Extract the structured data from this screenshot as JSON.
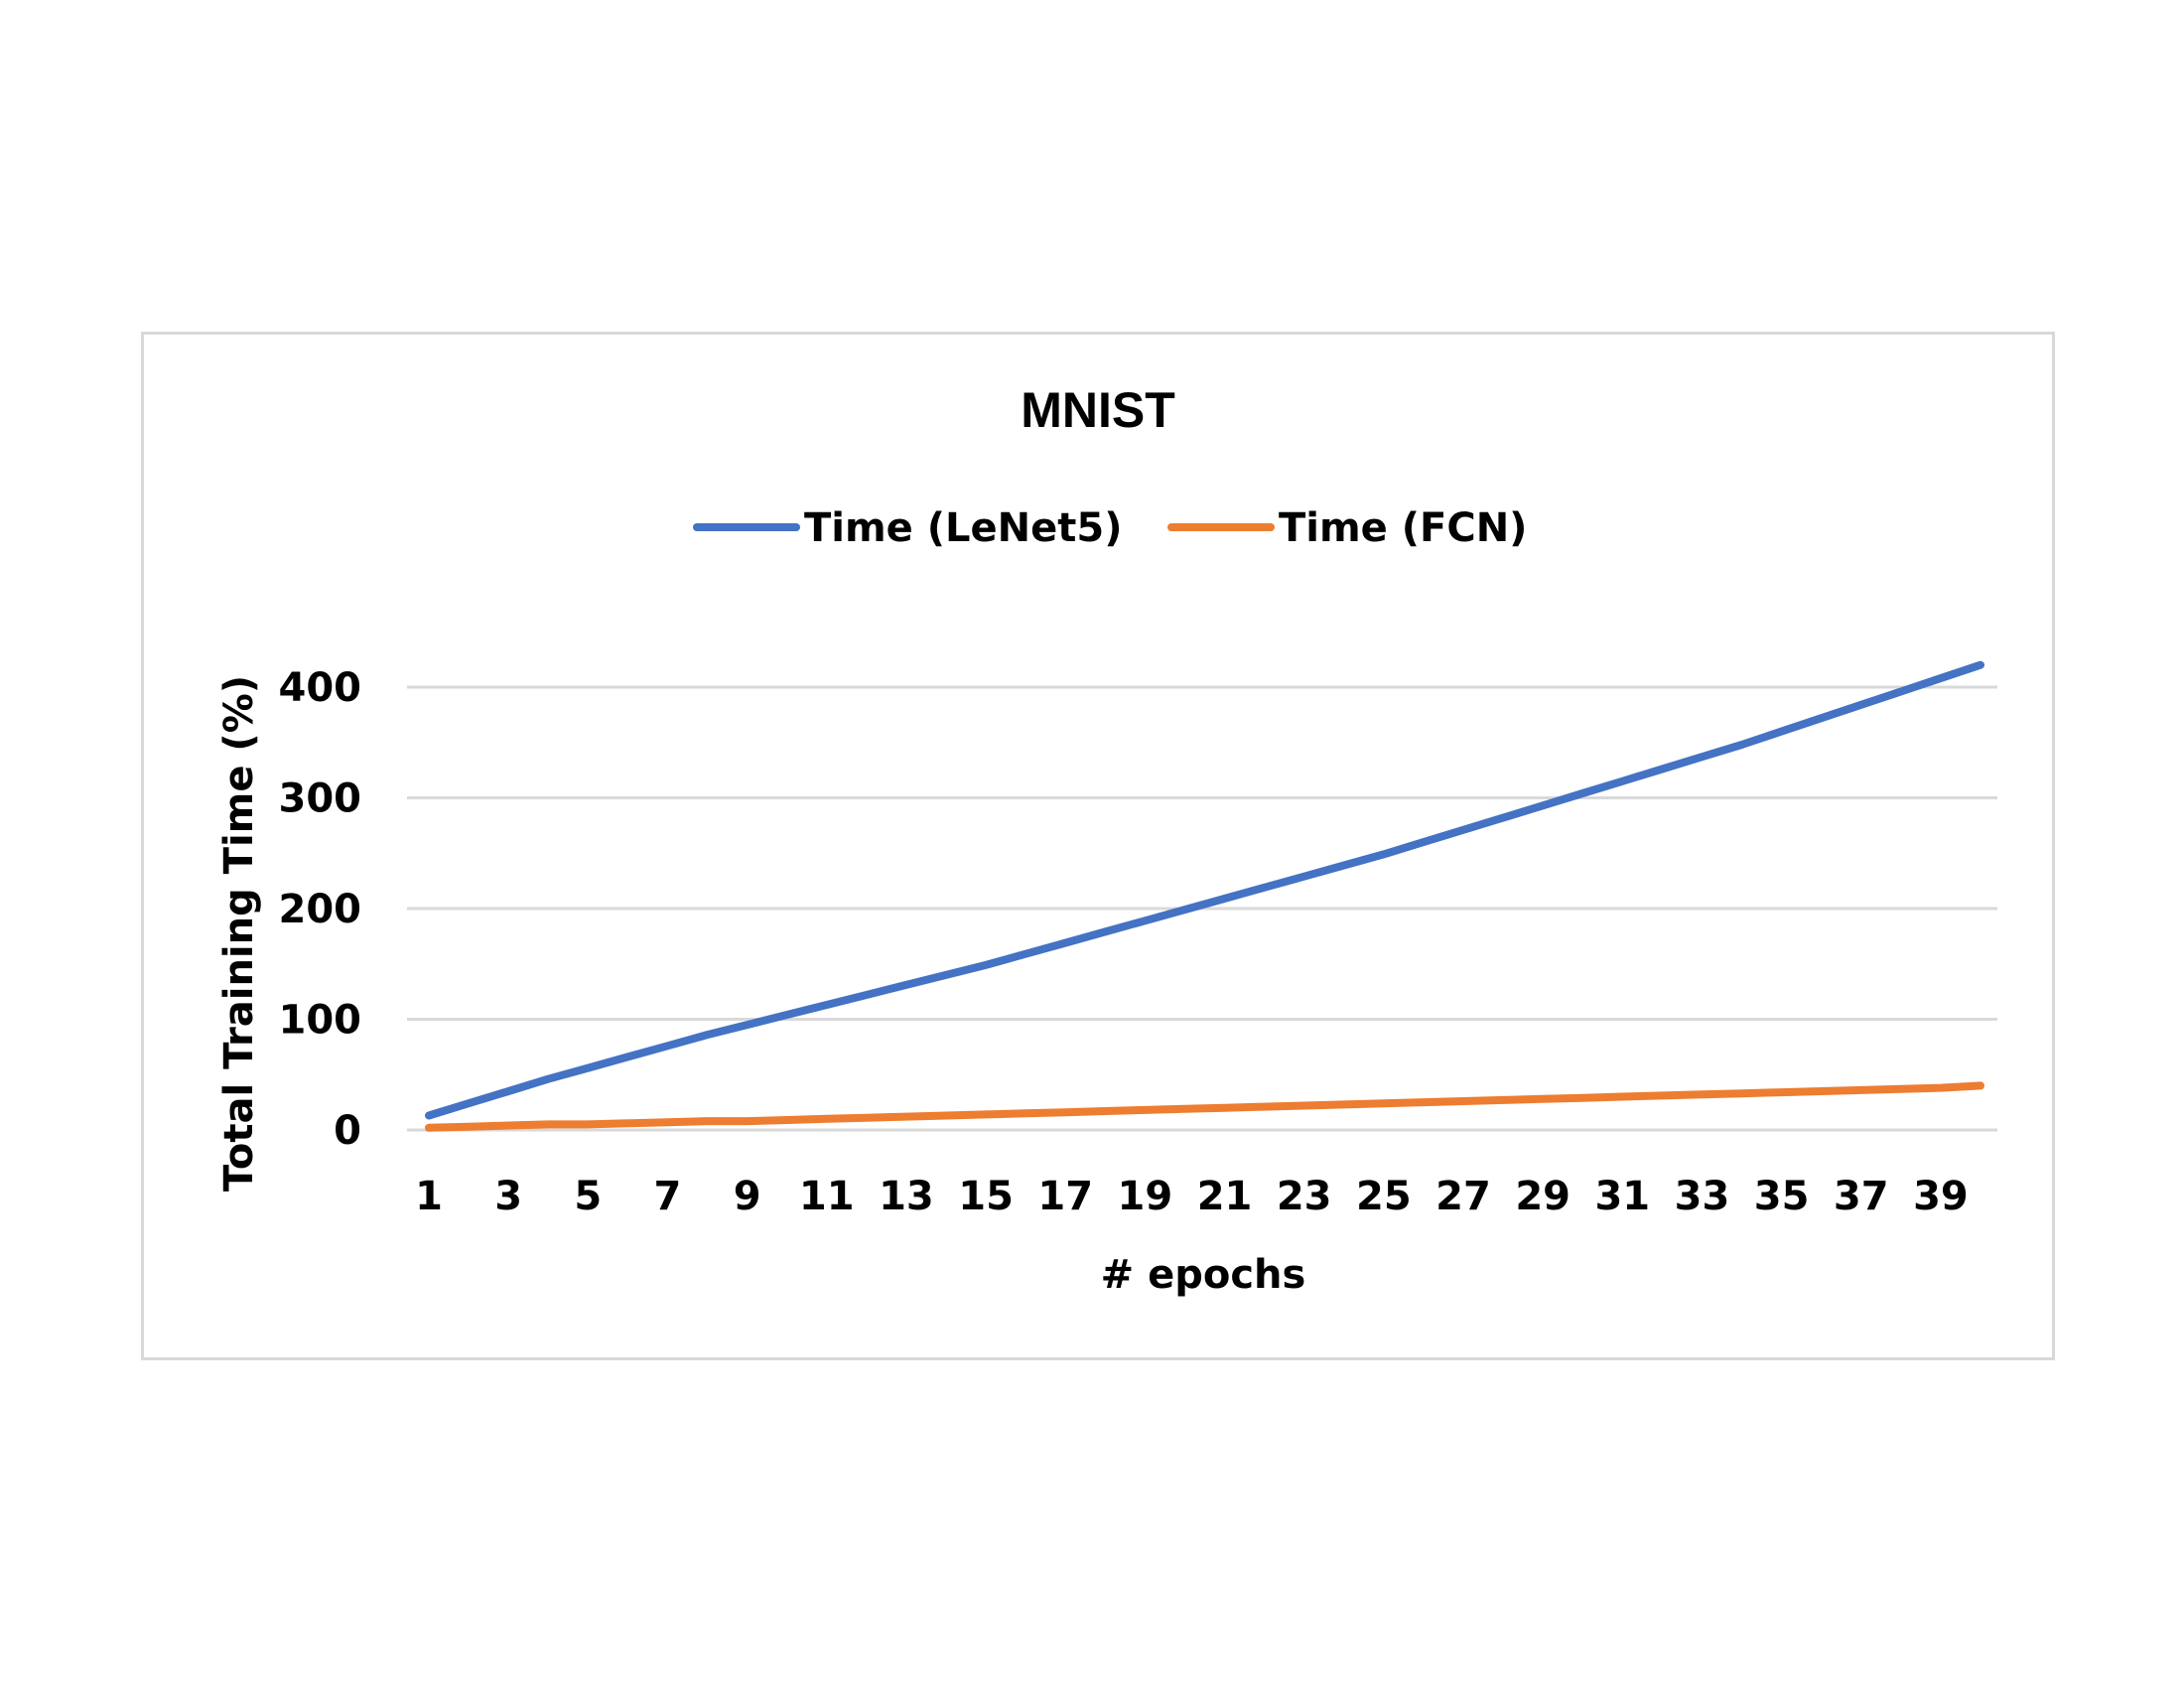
{
  "chart_data": {
    "type": "line",
    "title": "MNIST",
    "xlabel": "# epochs",
    "ylabel": "Total Training Time (%)",
    "x": [
      1,
      2,
      3,
      4,
      5,
      6,
      7,
      8,
      9,
      10,
      11,
      12,
      13,
      14,
      15,
      16,
      17,
      18,
      19,
      20,
      21,
      22,
      23,
      24,
      25,
      26,
      27,
      28,
      29,
      30,
      31,
      32,
      33,
      34,
      35,
      36,
      37,
      38,
      39,
      40
    ],
    "x_tick_labels": [
      "1",
      "3",
      "5",
      "7",
      "9",
      "11",
      "13",
      "15",
      "17",
      "19",
      "21",
      "23",
      "25",
      "27",
      "29",
      "31",
      "33",
      "35",
      "37",
      "39"
    ],
    "ylim": [
      0,
      400
    ],
    "y_ticks": [
      0,
      100,
      200,
      300,
      400
    ],
    "grid": "horizontal",
    "legend_position": "top",
    "series": [
      {
        "name": "Time (LeNet5)",
        "color": "#4472c4",
        "values": [
          13,
          24,
          35,
          46,
          56,
          66,
          76,
          86,
          95,
          104,
          113,
          122,
          131,
          140,
          149,
          159,
          169,
          179,
          189,
          199,
          209,
          219,
          229,
          239,
          249,
          260,
          271,
          282,
          293,
          304,
          315,
          326,
          337,
          348,
          360,
          372,
          384,
          396,
          408,
          420
        ]
      },
      {
        "name": "Time (FCN)",
        "color": "#ed7d31",
        "values": [
          2,
          3,
          4,
          5,
          5,
          6,
          7,
          8,
          8,
          9,
          10,
          11,
          12,
          13,
          14,
          15,
          16,
          17,
          18,
          19,
          20,
          21,
          22,
          23,
          24,
          25,
          26,
          27,
          28,
          29,
          30,
          31,
          32,
          33,
          34,
          35,
          36,
          37,
          38,
          40
        ]
      }
    ]
  }
}
